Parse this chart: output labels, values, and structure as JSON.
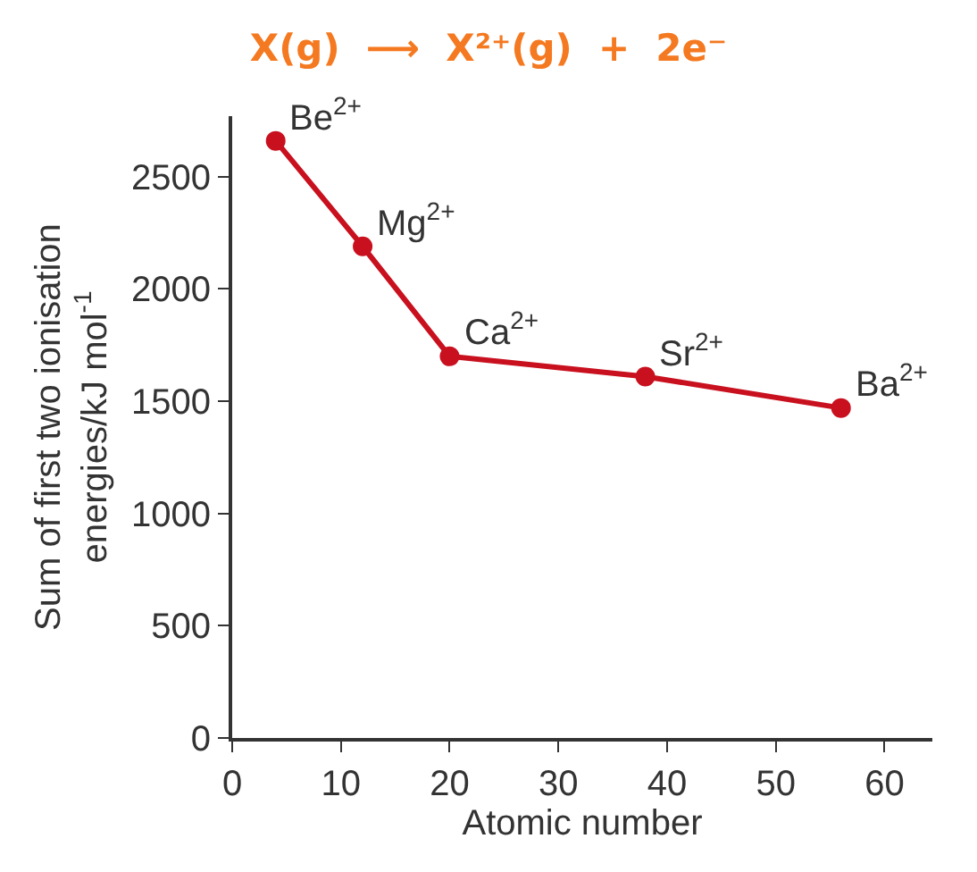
{
  "chart_data": {
    "type": "line",
    "title": "X(g)  ⟶  X²⁺(g)  +  2e⁻",
    "xlabel": "Atomic number",
    "ylabel": "Sum of first two ionisation\nenergies/kJ mol$^{-1}$",
    "x": [
      4,
      12,
      20,
      38,
      56
    ],
    "series": [
      {
        "color": "#c8101e",
        "values": [
          2660,
          2190,
          1700,
          1610,
          1470
        ]
      }
    ],
    "marker": "circle",
    "line_style": "solid",
    "xlim": [
      0,
      64.4
    ],
    "ylim": [
      0,
      2770
    ],
    "xticks": [
      0,
      10,
      20,
      30,
      40,
      50,
      60
    ],
    "yticks": [
      0,
      500,
      1000,
      1500,
      2000,
      2500
    ],
    "annotations": [
      {
        "text": "Be$^{2+}$",
        "x": 4,
        "y": 2660
      },
      {
        "text": "Mg$^{2+}$",
        "x": 12,
        "y": 2190
      },
      {
        "text": "Ca$^{2+}$",
        "x": 20,
        "y": 1700
      },
      {
        "text": "Sr$^{2+}$",
        "x": 38,
        "y": 1610
      },
      {
        "text": "Ba$^{2+}$",
        "x": 56,
        "y": 1470
      }
    ]
  }
}
